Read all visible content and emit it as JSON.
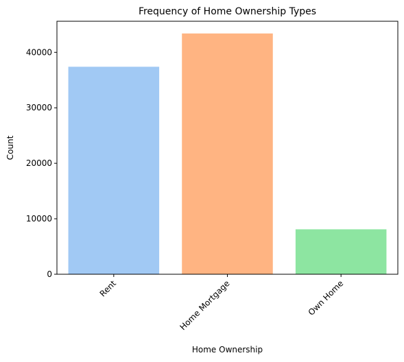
{
  "chart_data": {
    "type": "bar",
    "title": "Frequency of Home Ownership Types",
    "xlabel": "Home Ownership",
    "ylabel": "Count",
    "categories": [
      "Rent",
      "Home Mortgage",
      "Own Home"
    ],
    "values": [
      37400,
      43400,
      8100
    ],
    "colors": [
      "#a1c9f4",
      "#ffb482",
      "#8de5a1"
    ],
    "ylim": [
      0,
      45600
    ],
    "yticks": [
      0,
      10000,
      20000,
      30000,
      40000
    ],
    "ytick_labels": [
      "0",
      "10000",
      "20000",
      "30000",
      "40000"
    ],
    "xtick_rotation_deg": 45,
    "grid": false,
    "legend": "none"
  }
}
